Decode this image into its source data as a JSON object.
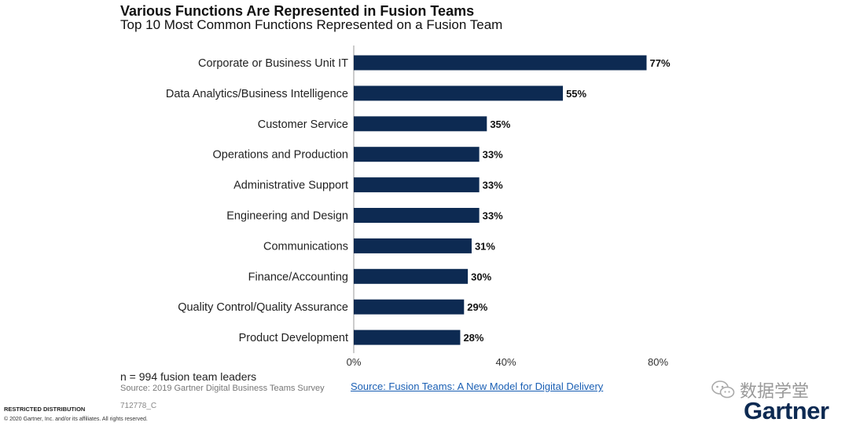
{
  "header": {
    "title": "Various Functions Are Represented in Fusion Teams",
    "subtitle": "Top 10 Most Common Functions Represented on a Fusion Team"
  },
  "chart_data": {
    "type": "bar",
    "orientation": "horizontal",
    "title": "Various Functions Are Represented in Fusion Teams",
    "subtitle": "Top 10 Most Common Functions Represented on a Fusion Team",
    "categories": [
      "Corporate or Business Unit IT",
      "Data Analytics/Business Intelligence",
      "Customer Service",
      "Operations and Production",
      "Administrative Support",
      "Engineering and Design",
      "Communications",
      "Finance/Accounting",
      "Quality Control/Quality Assurance",
      "Product Development"
    ],
    "values": [
      77,
      55,
      35,
      33,
      33,
      33,
      31,
      30,
      29,
      28
    ],
    "value_labels": [
      "77%",
      "55%",
      "35%",
      "33%",
      "33%",
      "33%",
      "31%",
      "30%",
      "29%",
      "28%"
    ],
    "xlim": [
      0,
      80
    ],
    "xticks": [
      0,
      40,
      80
    ],
    "xtick_labels": [
      "0%",
      "40%",
      "80%"
    ],
    "xlabel": "",
    "ylabel": "",
    "grid": false,
    "bar_color": "#0d2a52"
  },
  "footer": {
    "n_note": "n = 994 fusion team leaders",
    "source": "Source: 2019 Gartner Digital Business Teams Survey",
    "source_link": "Source: Fusion Teams: A New Model for Digital Delivery",
    "doc_code": "712778_C",
    "restricted": "RESTRICTED DISTRIBUTION",
    "copyright": "© 2020 Gartner, Inc. and/or its affiliates. All rights reserved.",
    "wechat_label": "数据学堂",
    "logo": "Gartner",
    "wechat_icon": "wechat-icon"
  }
}
